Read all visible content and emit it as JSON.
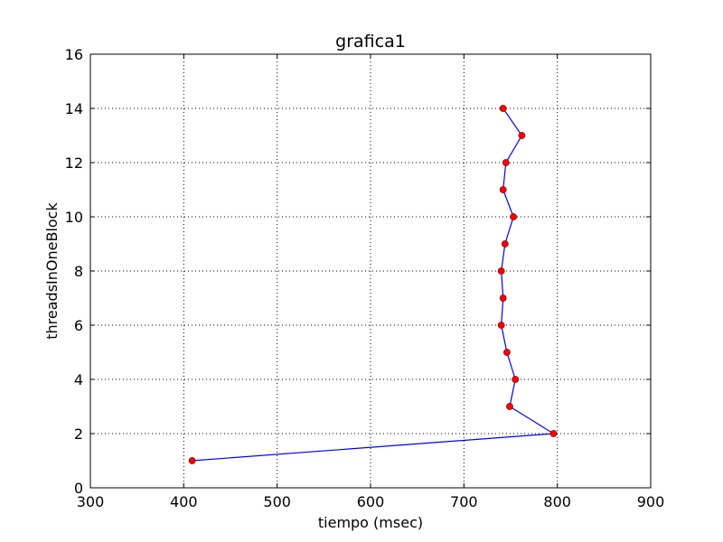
{
  "chart_data": {
    "type": "line",
    "title": "grafica1",
    "xlabel": "tiempo (msec)",
    "ylabel": "threadsInOneBlock",
    "xlim": [
      300,
      900
    ],
    "ylim": [
      0,
      16
    ],
    "xticks": [
      300,
      400,
      500,
      600,
      700,
      800,
      900
    ],
    "yticks": [
      0,
      2,
      4,
      6,
      8,
      10,
      12,
      14,
      16
    ],
    "grid": true,
    "legend": false,
    "line_color": "#0000ff",
    "marker_color": "#ff0000",
    "marker_edge_color": "#8b0000",
    "series": [
      {
        "x": [
          409,
          796,
          749,
          755,
          746,
          740,
          742,
          740,
          744,
          753,
          742,
          745,
          762,
          742
        ],
        "y": [
          1,
          2,
          3,
          4,
          5,
          6,
          7,
          8,
          9,
          10,
          11,
          12,
          13,
          14
        ]
      }
    ]
  }
}
